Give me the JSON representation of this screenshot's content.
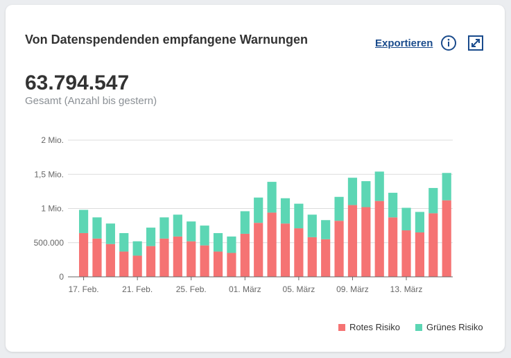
{
  "card": {
    "title": "Von Datenspendenden empfangene Warnungen",
    "export_label": "Exportieren",
    "info_icon": "info-icon",
    "expand_icon": "expand-icon"
  },
  "summary": {
    "total": "63.794.547",
    "total_label": "Gesamt (Anzahl bis gestern)"
  },
  "colors": {
    "rot": "#f57373",
    "gruen": "#5cd6b4",
    "accent": "#1a4b8c"
  },
  "chart_data": {
    "type": "bar",
    "stacked": true,
    "title": "",
    "xlabel": "",
    "ylabel": "",
    "ylim": [
      0,
      2000000
    ],
    "y_ticks": [
      {
        "value": 0,
        "label": "0"
      },
      {
        "value": 500000,
        "label": "500.000"
      },
      {
        "value": 1000000,
        "label": "1 Mio."
      },
      {
        "value": 1500000,
        "label": "1,5 Mio."
      },
      {
        "value": 2000000,
        "label": "2 Mio."
      }
    ],
    "x_tick_labels": [
      "17. Feb.",
      "21. Feb.",
      "25. Feb.",
      "01. März",
      "05. März",
      "09. März",
      "13. März"
    ],
    "x_tick_every": 4,
    "grid": true,
    "legend_position": "bottom-right",
    "series": [
      {
        "name": "Rotes Risiko",
        "color": "#f57373",
        "values": [
          640000,
          560000,
          480000,
          370000,
          310000,
          450000,
          560000,
          590000,
          520000,
          460000,
          370000,
          350000,
          630000,
          790000,
          940000,
          780000,
          710000,
          580000,
          550000,
          820000,
          1050000,
          1020000,
          1110000,
          870000,
          680000,
          650000,
          930000,
          1120000
        ]
      },
      {
        "name": "Grünes Risiko",
        "color": "#5cd6b4",
        "values": [
          340000,
          310000,
          300000,
          270000,
          210000,
          270000,
          310000,
          320000,
          290000,
          290000,
          270000,
          240000,
          330000,
          370000,
          450000,
          370000,
          360000,
          330000,
          280000,
          350000,
          400000,
          380000,
          430000,
          360000,
          330000,
          300000,
          370000,
          400000
        ]
      }
    ]
  },
  "legend": {
    "rot": "Rotes Risiko",
    "gruen": "Grünes Risiko"
  }
}
